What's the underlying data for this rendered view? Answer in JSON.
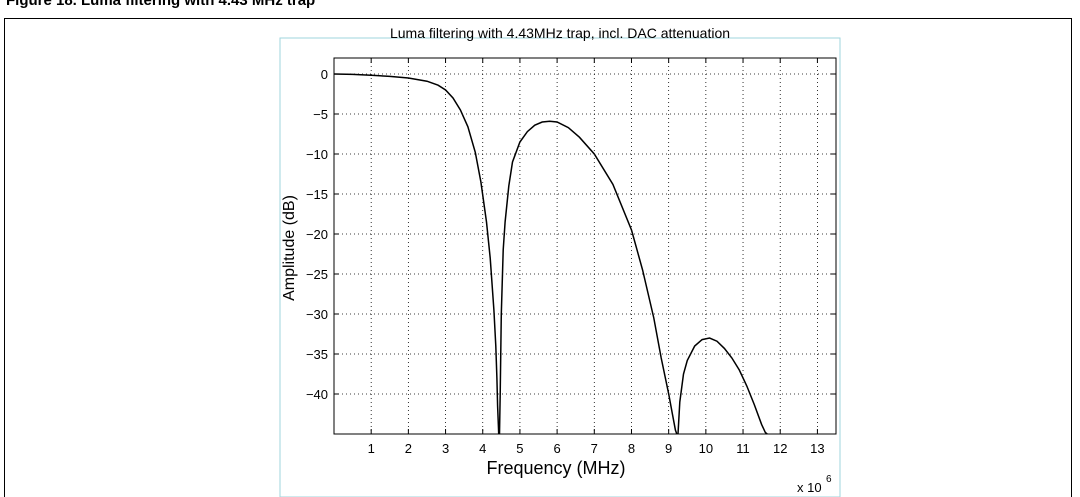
{
  "figure": {
    "caption": "Figure 18. Luma filtering with 4.43 MHz trap"
  },
  "chart_data": {
    "type": "line",
    "title": "Luma filtering with 4.43MHz trap,  incl. DAC attenuation",
    "xlabel": "Frequency (MHz)",
    "ylabel": "Amplitude (dB)",
    "x_multiplier": "x 10",
    "x_multiplier_exp": "6",
    "xlim": [
      0,
      13.5
    ],
    "ylim": [
      -45,
      2
    ],
    "x_ticks": [
      1,
      2,
      3,
      4,
      5,
      6,
      7,
      8,
      9,
      10,
      11,
      12,
      13
    ],
    "y_ticks": [
      0,
      -5,
      -10,
      -15,
      -20,
      -25,
      -30,
      -35,
      -40
    ],
    "grid": true,
    "series": [
      {
        "color": "#000000",
        "segments": [
          {
            "x": [
              0,
              0.5,
              1.0,
              1.5,
              2.0,
              2.5,
              2.8,
              3.0,
              3.2,
              3.4,
              3.6,
              3.8,
              3.95,
              4.1,
              4.2,
              4.3,
              4.35,
              4.38,
              4.4,
              4.42,
              4.43
            ],
            "y": [
              0,
              -0.05,
              -0.15,
              -0.3,
              -0.5,
              -0.9,
              -1.4,
              -2.0,
              -3.0,
              -4.5,
              -6.6,
              -9.8,
              -13.5,
              -18.5,
              -23.0,
              -29.5,
              -34.0,
              -38.0,
              -41.5,
              -44.0,
              -45.0
            ]
          },
          {
            "x": [
              4.45,
              4.47,
              4.5,
              4.55,
              4.6,
              4.7,
              4.8,
              5.0,
              5.2,
              5.4,
              5.6,
              5.8,
              6.0,
              6.3,
              6.6,
              7.0,
              7.5,
              8.0,
              8.3,
              8.6,
              8.8,
              9.0,
              9.1,
              9.18,
              9.22
            ],
            "y": [
              -45.0,
              -40.0,
              -30.0,
              -22.0,
              -18.5,
              -14.0,
              -11.0,
              -8.5,
              -7.2,
              -6.4,
              -6.0,
              -5.9,
              -6.0,
              -6.7,
              -7.9,
              -10.0,
              -13.8,
              -19.5,
              -24.5,
              -30.5,
              -35.5,
              -40.0,
              -42.5,
              -44.5,
              -45.0
            ]
          },
          {
            "x": [
              9.25,
              9.3,
              9.4,
              9.5,
              9.7,
              9.9,
              10.1,
              10.3,
              10.5,
              10.7,
              10.9,
              11.1,
              11.3,
              11.5,
              11.6,
              11.65
            ],
            "y": [
              -45.0,
              -41.0,
              -37.5,
              -35.8,
              -34.0,
              -33.2,
              -33.0,
              -33.4,
              -34.3,
              -35.5,
              -37.0,
              -39.0,
              -41.3,
              -43.8,
              -44.8,
              -45.0
            ]
          }
        ]
      }
    ]
  }
}
